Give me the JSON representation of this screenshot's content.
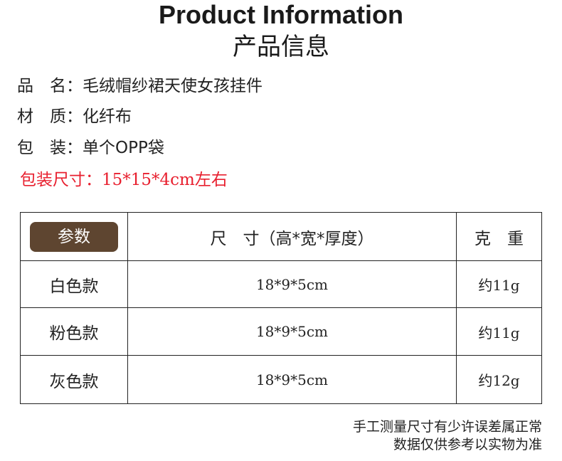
{
  "title_en": "Product Information",
  "title_cn": "产品信息",
  "info": [
    {
      "label": "品　名：",
      "value": "毛绒帽纱裙天使女孩挂件"
    },
    {
      "label": "材　质：",
      "value": "化纤布"
    },
    {
      "label": "包　装：",
      "value": "单个OPP袋"
    },
    {
      "label": "包装尺寸：",
      "value": "15*15*4cm左右"
    }
  ],
  "accent_color": "#e8202f",
  "badge_color": "#5e4530",
  "table": {
    "headers": [
      "参数",
      "尺　寸（高*宽*厚度）",
      "克　重"
    ],
    "rows": [
      [
        "白色款",
        "18*9*5cm",
        "约11g"
      ],
      [
        "粉色款",
        "18*9*5cm",
        "约11g"
      ],
      [
        "灰色款",
        "18*9*5cm",
        "约12g"
      ]
    ]
  },
  "footer": [
    "手工测量尺寸有少许误差属正常",
    "数据仅供参考以实物为准"
  ]
}
